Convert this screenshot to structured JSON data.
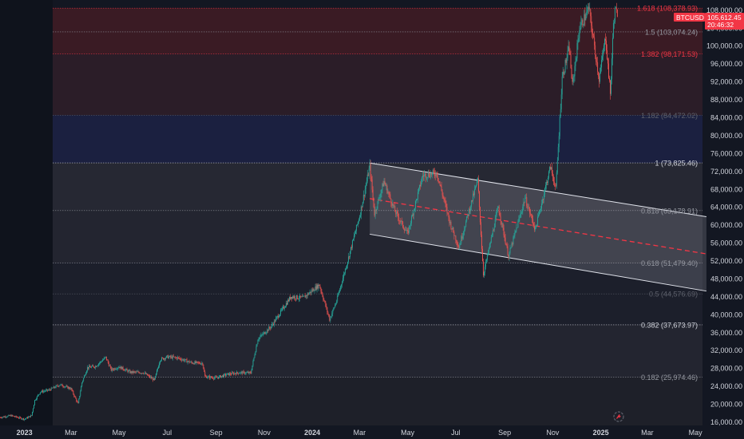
{
  "chart_data": {
    "type": "candlestick",
    "symbol": "BTCUSD",
    "last_price": "105,612.45",
    "countdown": "20:46:32",
    "y_ticks": [
      16000,
      20000,
      24000,
      28000,
      32000,
      36000,
      40000,
      44000,
      48000,
      52000,
      56000,
      60000,
      64000,
      68000,
      72000,
      76000,
      80000,
      84000,
      88000,
      92000,
      96000,
      100000,
      104000,
      108000
    ],
    "y_tick_labels": [
      "16,000.00",
      "20,000.00",
      "24,000.00",
      "28,000.00",
      "32,000.00",
      "36,000.00",
      "40,000.00",
      "44,000.00",
      "48,000.00",
      "52,000.00",
      "56,000.00",
      "60,000.00",
      "64,000.00",
      "68,000.00",
      "72,000.00",
      "76,000.00",
      "80,000.00",
      "84,000.00",
      "88,000.00",
      "92,000.00",
      "96,000.00",
      "100,000.00",
      "104,000.00",
      "108,000.00"
    ],
    "x_ticks": [
      {
        "label": "2023",
        "date": "2023-01-01",
        "bold": true
      },
      {
        "label": "Mar",
        "date": "2023-03-01",
        "bold": false
      },
      {
        "label": "May",
        "date": "2023-05-01",
        "bold": false
      },
      {
        "label": "Jul",
        "date": "2023-07-01",
        "bold": false
      },
      {
        "label": "Sep",
        "date": "2023-09-01",
        "bold": false
      },
      {
        "label": "Nov",
        "date": "2023-11-01",
        "bold": false
      },
      {
        "label": "2024",
        "date": "2024-01-01",
        "bold": true
      },
      {
        "label": "Mar",
        "date": "2024-03-01",
        "bold": false
      },
      {
        "label": "May",
        "date": "2024-05-01",
        "bold": false
      },
      {
        "label": "Jul",
        "date": "2024-07-01",
        "bold": false
      },
      {
        "label": "Sep",
        "date": "2024-09-01",
        "bold": false
      },
      {
        "label": "Nov",
        "date": "2024-11-01",
        "bold": false
      },
      {
        "label": "2025",
        "date": "2025-01-01",
        "bold": true
      },
      {
        "label": "Mar",
        "date": "2025-03-01",
        "bold": false
      },
      {
        "label": "May",
        "date": "2025-05-01",
        "bold": false
      }
    ],
    "fib_levels": [
      {
        "label": "1.618 (108,378.93)",
        "level": 1.618,
        "price": 108378.93,
        "color": "#f23645"
      },
      {
        "label": "1.5 (103,074.24)",
        "level": 1.5,
        "price": 103074.24,
        "color": "#9598a1"
      },
      {
        "label": "1.382 (98,171.53)",
        "level": 1.382,
        "price": 98171.53,
        "color": "#f23645"
      },
      {
        "label": "1.182 (84,472.02)",
        "level": 1.182,
        "price": 84472.02,
        "color": "#5d606b"
      },
      {
        "label": "1 (73,825.46)",
        "level": 1,
        "price": 73825.46,
        "color": "#d1d4dc"
      },
      {
        "label": "0.818 (63,178.91)",
        "level": 0.818,
        "price": 63178.91,
        "color": "#9598a1"
      },
      {
        "label": "0.618 (51,479.40)",
        "level": 0.618,
        "price": 51479.4,
        "color": "#9598a1"
      },
      {
        "label": "0.5 (44,576.69)",
        "level": 0.5,
        "price": 44576.69,
        "color": "#5d606b"
      },
      {
        "label": "0.382 (37,673.97)",
        "level": 0.382,
        "price": 37673.97,
        "color": "#d1d4dc"
      },
      {
        "label": "0.182 (25,974.46)",
        "level": 0.182,
        "price": 25974.46,
        "color": "#9598a1"
      }
    ],
    "fib_bands": [
      {
        "from": 98171.53,
        "to": 108378.93,
        "color": "#3a1b24"
      },
      {
        "from": 84472.02,
        "to": 98171.53,
        "color": "#2b1d28"
      },
      {
        "from": 73825.46,
        "to": 84472.02,
        "color": "#1b2040"
      },
      {
        "from": 63178.91,
        "to": 73825.46,
        "color": "#262833"
      },
      {
        "from": 51479.4,
        "to": 63178.91,
        "color": "#232530"
      },
      {
        "from": 44576.69,
        "to": 51479.4,
        "color": "#1c1f2b"
      },
      {
        "from": 37673.97,
        "to": 44576.69,
        "color": "#1c1f2b"
      },
      {
        "from": 25974.46,
        "to": 37673.97,
        "color": "#232530"
      },
      {
        "from": 15000,
        "to": 25974.46,
        "color": "#1e2029"
      }
    ],
    "channel": {
      "upper": {
        "start": {
          "date": "2024-03-14",
          "price": 73800
        },
        "end": {
          "date": "2025-05-15",
          "price": 61800
        }
      },
      "lower": {
        "start": {
          "date": "2024-03-14",
          "price": 57900
        },
        "end": {
          "date": "2025-05-15",
          "price": 45200
        }
      },
      "mid_dashed_color": "#f23645",
      "fill": "#d1d4dc"
    },
    "price_path": [
      [
        "2022-12-01",
        17000
      ],
      [
        "2022-12-15",
        17400
      ],
      [
        "2023-01-01",
        16600
      ],
      [
        "2023-01-10",
        17400
      ],
      [
        "2023-01-14",
        20800
      ],
      [
        "2023-01-21",
        22700
      ],
      [
        "2023-02-01",
        23100
      ],
      [
        "2023-02-15",
        24300
      ],
      [
        "2023-03-01",
        23400
      ],
      [
        "2023-03-10",
        20000
      ],
      [
        "2023-03-15",
        24800
      ],
      [
        "2023-03-22",
        28100
      ],
      [
        "2023-04-01",
        28400
      ],
      [
        "2023-04-14",
        30400
      ],
      [
        "2023-04-21",
        27600
      ],
      [
        "2023-05-01",
        28300
      ],
      [
        "2023-05-15",
        27100
      ],
      [
        "2023-06-01",
        27000
      ],
      [
        "2023-06-15",
        25300
      ],
      [
        "2023-06-22",
        29900
      ],
      [
        "2023-07-01",
        30500
      ],
      [
        "2023-07-14",
        30300
      ],
      [
        "2023-08-01",
        29200
      ],
      [
        "2023-08-15",
        29100
      ],
      [
        "2023-08-18",
        26100
      ],
      [
        "2023-09-01",
        25800
      ],
      [
        "2023-09-15",
        26600
      ],
      [
        "2023-10-01",
        27000
      ],
      [
        "2023-10-15",
        26900
      ],
      [
        "2023-10-24",
        34500
      ],
      [
        "2023-11-10",
        37300
      ],
      [
        "2023-12-05",
        44000
      ],
      [
        "2023-12-20",
        43600
      ],
      [
        "2024-01-10",
        46600
      ],
      [
        "2024-01-23",
        38900
      ],
      [
        "2024-02-01",
        43000
      ],
      [
        "2024-02-15",
        52000
      ],
      [
        "2024-03-01",
        62000
      ],
      [
        "2024-03-14",
        73100
      ],
      [
        "2024-03-20",
        62500
      ],
      [
        "2024-04-01",
        69700
      ],
      [
        "2024-04-15",
        63000
      ],
      [
        "2024-05-01",
        58000
      ],
      [
        "2024-05-20",
        71000
      ],
      [
        "2024-06-07",
        71600
      ],
      [
        "2024-06-24",
        60300
      ],
      [
        "2024-07-05",
        55000
      ],
      [
        "2024-07-29",
        70000
      ],
      [
        "2024-08-05",
        49000
      ],
      [
        "2024-08-24",
        64000
      ],
      [
        "2024-09-06",
        53000
      ],
      [
        "2024-09-27",
        66000
      ],
      [
        "2024-10-10",
        59000
      ],
      [
        "2024-10-29",
        73000
      ],
      [
        "2024-11-05",
        68000
      ],
      [
        "2024-11-13",
        93000
      ],
      [
        "2024-11-22",
        99500
      ],
      [
        "2024-11-26",
        91000
      ],
      [
        "2024-12-05",
        103900
      ],
      [
        "2024-12-17",
        108300
      ],
      [
        "2024-12-30",
        92500
      ],
      [
        "2025-01-07",
        102000
      ],
      [
        "2025-01-13",
        89200
      ],
      [
        "2025-01-17",
        105000
      ],
      [
        "2025-01-20",
        109000
      ],
      [
        "2025-01-22",
        105612
      ]
    ],
    "x_domain": [
      "2022-12-01",
      "2025-05-10"
    ],
    "y_domain": [
      15200,
      110200
    ],
    "colors": {
      "up": "#26a69a",
      "down": "#ef5350",
      "background": "#131722",
      "grid": "#2a2e39",
      "axis_text": "#d1d4dc",
      "price_tag": "#f23645"
    }
  },
  "ui": {
    "logo_icon": "tradingview-badge-icon"
  }
}
